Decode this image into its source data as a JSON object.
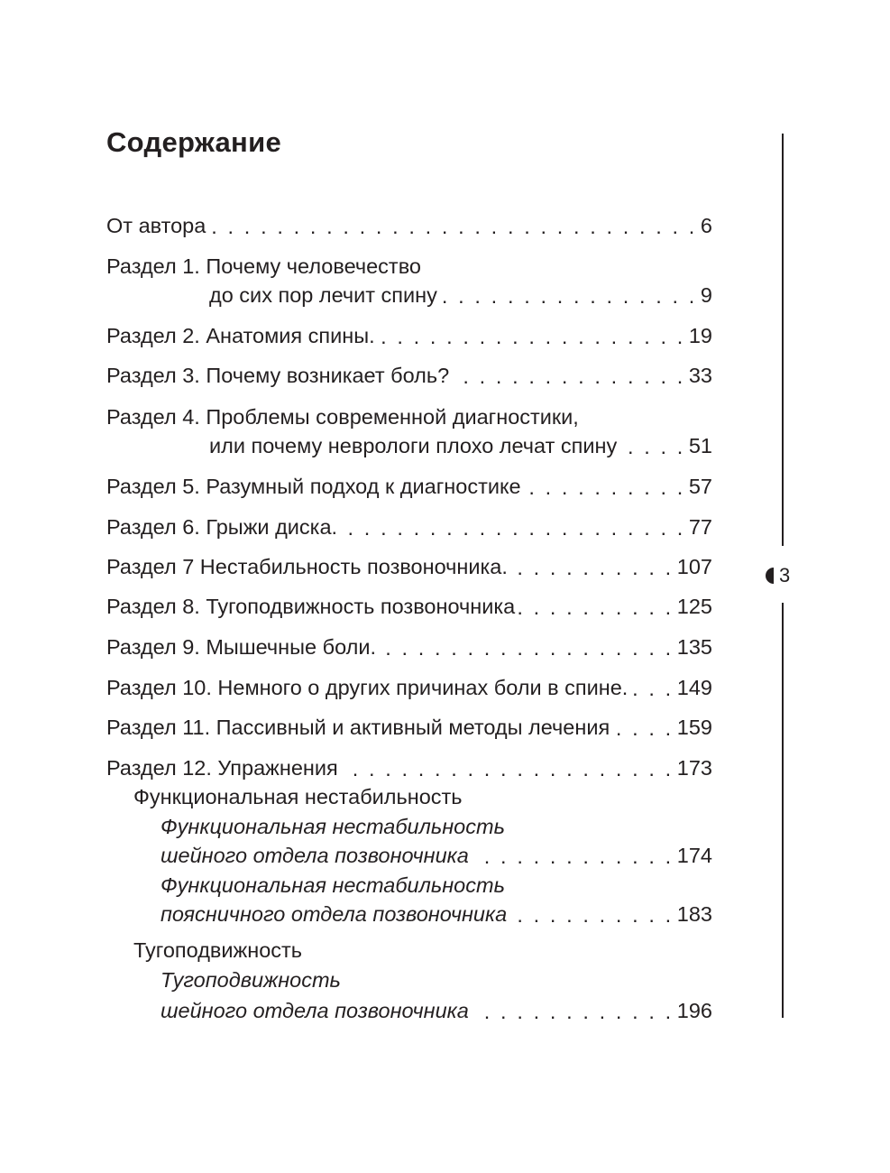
{
  "heading": "Содержание",
  "page_number": "3",
  "entries": [
    {
      "lines": [
        "От автора"
      ],
      "page": "6"
    },
    {
      "lines": [
        "Раздел 1. Почему человечество",
        "до сих пор лечит спину"
      ],
      "page": "9"
    },
    {
      "lines": [
        "Раздел 2. Анатомия спины."
      ],
      "page": "19"
    },
    {
      "lines": [
        "Раздел 3. Почему возникает боль?"
      ],
      "page": "33"
    },
    {
      "lines": [
        "Раздел 4. Проблемы современной диагностики,",
        "или почему неврологи плохо лечат спину"
      ],
      "page": "51"
    },
    {
      "lines": [
        "Раздел 5. Разумный подход к диагностике"
      ],
      "page": "57"
    },
    {
      "lines": [
        "Раздел 6. Грыжи диска."
      ],
      "page": "77"
    },
    {
      "lines": [
        "Раздел 7 Нестабильность позвоночника."
      ],
      "page": "107"
    },
    {
      "lines": [
        "Раздел 8. Тугоподвижность позвоночника"
      ],
      "page": "125"
    },
    {
      "lines": [
        "Раздел 9. Мышечные боли."
      ],
      "page": "135"
    },
    {
      "lines": [
        "Раздел 10. Немного о других причинах боли в спине."
      ],
      "page": "149"
    },
    {
      "lines": [
        "Раздел 11. Пассивный и активный методы лечения"
      ],
      "page": "159"
    },
    {
      "lines": [
        "Раздел 12. Упражнения"
      ],
      "page": "173"
    },
    {
      "lines": [
        "Функциональная нестабильность"
      ]
    },
    {
      "lines": [
        "Функциональная нестабильность",
        "шейного отдела позвоночника"
      ],
      "page": "174"
    },
    {
      "lines": [
        "Функциональная нестабильность",
        "поясничного отдела позвоночника"
      ],
      "page": "183"
    },
    {
      "lines": [
        "Тугоподвижность"
      ]
    },
    {
      "lines": [
        "Тугоподвижность",
        "шейного отдела позвоночника"
      ],
      "page": "196"
    }
  ]
}
